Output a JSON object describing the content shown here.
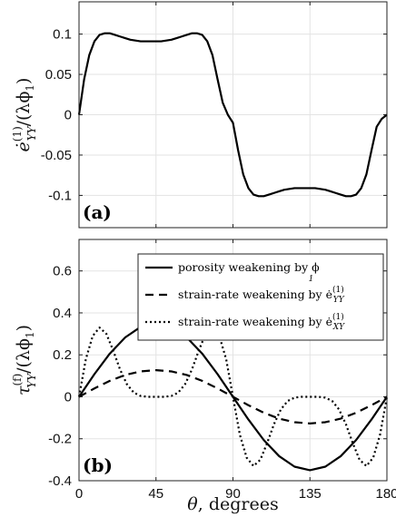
{
  "chart_data": [
    {
      "type": "line",
      "panel_label": "(a)",
      "ylabel_main": "ė",
      "ylabel_sup": "(1)",
      "ylabel_sub": "YY",
      "ylabel_tail": "/(λϕ",
      "ylabel_tail_sub": "1",
      "ylabel_close": ")",
      "xlim": [
        0,
        180
      ],
      "ylim": [
        -0.14,
        0.14
      ],
      "xticks": [
        0,
        45,
        90,
        135,
        180
      ],
      "yticks": [
        -0.1,
        -0.05,
        0,
        0.05,
        0.1
      ],
      "ytick_labels": [
        "-0.1",
        "-0.05",
        "0",
        "0.05",
        "0.1"
      ],
      "grid": true,
      "series": [
        {
          "style": "solid",
          "x": [
            0,
            3,
            6,
            9,
            12,
            15,
            18,
            21,
            24,
            27,
            30,
            33,
            36,
            39,
            42,
            45,
            48,
            51,
            54,
            57,
            60,
            63,
            66,
            69,
            72,
            75,
            78,
            81,
            84,
            87,
            90,
            93,
            96,
            99,
            102,
            105,
            108,
            111,
            114,
            117,
            120,
            123,
            126,
            129,
            132,
            135,
            138,
            141,
            144,
            147,
            150,
            153,
            156,
            159,
            162,
            165,
            168,
            171,
            174,
            177,
            180
          ],
          "y": [
            0.0,
            0.044,
            0.074,
            0.091,
            0.099,
            0.101,
            0.101,
            0.099,
            0.097,
            0.095,
            0.093,
            0.092,
            0.091,
            0.091,
            0.091,
            0.091,
            0.091,
            0.092,
            0.093,
            0.095,
            0.097,
            0.099,
            0.101,
            0.101,
            0.099,
            0.091,
            0.074,
            0.044,
            0.015,
            0.0,
            -0.01,
            -0.044,
            -0.074,
            -0.091,
            -0.099,
            -0.101,
            -0.101,
            -0.099,
            -0.097,
            -0.095,
            -0.093,
            -0.092,
            -0.091,
            -0.091,
            -0.091,
            -0.091,
            -0.091,
            -0.092,
            -0.093,
            -0.095,
            -0.097,
            -0.099,
            -0.101,
            -0.101,
            -0.099,
            -0.091,
            -0.074,
            -0.044,
            -0.015,
            -0.005,
            0.0
          ]
        }
      ]
    },
    {
      "type": "line",
      "panel_label": "(b)",
      "ylabel_main": "τ",
      "ylabel_sup": "(f)",
      "ylabel_sub": "YY",
      "ylabel_tail": "/(λϕ",
      "ylabel_tail_sub": "1",
      "ylabel_close": ")",
      "xlabel_sym": "θ",
      "xlabel_text": ", degrees",
      "xlim": [
        0,
        180
      ],
      "ylim": [
        -0.4,
        0.75
      ],
      "xticks": [
        0,
        45,
        90,
        135,
        180
      ],
      "yticks": [
        -0.4,
        -0.2,
        0,
        0.2,
        0.4,
        0.6
      ],
      "ytick_labels": [
        "-0.4",
        "-0.2",
        "0",
        "0.2",
        "0.4",
        "0.6"
      ],
      "grid": true,
      "legend_position": "top-right",
      "series": [
        {
          "name_text": "porosity weakening by ϕ",
          "name_sub": "1",
          "style": "solid",
          "x": [
            0,
            9,
            18,
            27,
            36,
            45,
            54,
            63,
            72,
            81,
            90,
            99,
            108,
            117,
            126,
            135,
            144,
            153,
            162,
            171,
            180
          ],
          "y": [
            0.0,
            0.108,
            0.206,
            0.283,
            0.333,
            0.35,
            0.333,
            0.283,
            0.206,
            0.108,
            0.0,
            -0.108,
            -0.206,
            -0.283,
            -0.333,
            -0.35,
            -0.333,
            -0.283,
            -0.206,
            -0.108,
            0.0
          ]
        },
        {
          "name_text": "strain-rate weakening by ė",
          "name_sup": "(1)",
          "name_sub": "YY",
          "style": "dashed",
          "x": [
            0,
            9,
            18,
            27,
            36,
            45,
            54,
            63,
            72,
            81,
            90,
            99,
            108,
            117,
            126,
            135,
            144,
            153,
            162,
            171,
            180
          ],
          "y": [
            0.0,
            0.04,
            0.076,
            0.104,
            0.121,
            0.127,
            0.121,
            0.104,
            0.076,
            0.04,
            0.0,
            -0.04,
            -0.076,
            -0.104,
            -0.121,
            -0.127,
            -0.121,
            -0.104,
            -0.076,
            -0.04,
            0.0
          ]
        },
        {
          "name_text": "strain-rate weakening by ė",
          "name_sup": "(1)",
          "name_sub": "XY",
          "style": "dotted",
          "x": [
            0,
            4,
            8,
            12,
            16,
            20,
            24,
            28,
            32,
            36,
            40,
            45,
            50,
            54,
            58,
            62,
            66,
            70,
            74,
            78,
            82,
            86,
            90,
            94,
            98,
            102,
            106,
            110,
            114,
            118,
            122,
            126,
            130,
            135,
            140,
            144,
            148,
            152,
            156,
            160,
            164,
            168,
            172,
            176,
            180
          ],
          "y": [
            0.0,
            0.18,
            0.29,
            0.33,
            0.3,
            0.22,
            0.13,
            0.06,
            0.02,
            0.004,
            0.0,
            0.0,
            0.0,
            0.004,
            0.02,
            0.06,
            0.13,
            0.22,
            0.3,
            0.33,
            0.29,
            0.18,
            0.0,
            -0.18,
            -0.29,
            -0.33,
            -0.3,
            -0.22,
            -0.13,
            -0.06,
            -0.02,
            -0.004,
            0.0,
            0.0,
            0.0,
            -0.004,
            -0.02,
            -0.06,
            -0.13,
            -0.22,
            -0.3,
            -0.33,
            -0.29,
            -0.18,
            0.0
          ]
        }
      ]
    }
  ]
}
